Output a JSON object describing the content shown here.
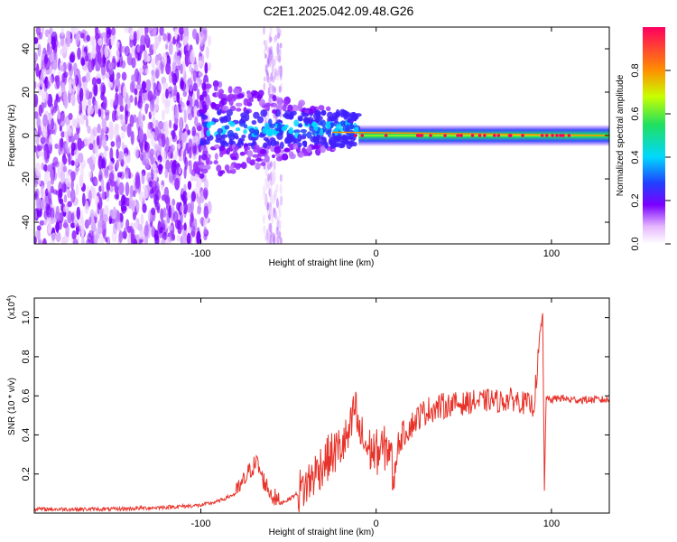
{
  "title": "C2E1.2025.042.09.48.G26",
  "chart_data": [
    {
      "type": "heatmap",
      "xlabel": "Height of straight line (km)",
      "ylabel": "Frequency (Hz)",
      "xlim": [
        -195,
        133
      ],
      "ylim": [
        -50,
        50
      ],
      "xticks": [
        -100,
        0,
        100
      ],
      "xtick_labels": [
        "-100",
        "0",
        "100"
      ],
      "yticks": [
        -40,
        -20,
        0,
        20,
        40
      ],
      "ytick_labels": [
        "-40",
        "-20",
        "0",
        "20",
        "40"
      ],
      "colorbar": {
        "label": "Normalized spectral amplitude",
        "range": [
          0,
          1
        ],
        "ticks": [
          0.0,
          0.2,
          0.4,
          0.6,
          0.8
        ],
        "tick_labels": [
          "0.0",
          "0.2",
          "0.4",
          "0.6",
          "0.8"
        ]
      },
      "ridge": {
        "description_points_x": [
          -95,
          -60,
          -40,
          -20,
          -10,
          0,
          50,
          100,
          133
        ],
        "frequency_y": [
          3,
          4,
          5,
          2,
          0.5,
          0,
          0,
          0,
          0
        ],
        "amplitude": [
          0.3,
          0.3,
          0.45,
          0.6,
          0.85,
          0.9,
          0.85,
          0.8,
          0.35
        ]
      }
    },
    {
      "type": "line",
      "xlabel": "Height of straight line (km)",
      "ylabel": "SNR (10 * v/v)",
      "y_multiplier_label": "(x10",
      "y_multiplier_exp": "4",
      "y_multiplier_close": ")",
      "xlim": [
        -195,
        133
      ],
      "ylim": [
        0,
        1.1
      ],
      "xticks": [
        -100,
        0,
        100
      ],
      "xtick_labels": [
        "-100",
        "0",
        "100"
      ],
      "yticks": [
        0.2,
        0.4,
        0.6,
        0.8,
        1.0
      ],
      "ytick_labels": [
        "0.2",
        "0.4",
        "0.6",
        "0.8",
        "1.0"
      ],
      "series": [
        {
          "color": "#e8332a",
          "x": [
            -195,
            -150,
            -120,
            -100,
            -90,
            -80,
            -75,
            -72,
            -68,
            -65,
            -60,
            -55,
            -50,
            -45,
            -40,
            -35,
            -30,
            -25,
            -20,
            -15,
            -12,
            -10,
            -5,
            0,
            5,
            8,
            10,
            12,
            15,
            20,
            25,
            30,
            35,
            40,
            45,
            50,
            55,
            60,
            65,
            70,
            75,
            80,
            85,
            90,
            93,
            95,
            96,
            97,
            98,
            100,
            105,
            110,
            120,
            133
          ],
          "y": [
            0.02,
            0.02,
            0.03,
            0.04,
            0.06,
            0.1,
            0.17,
            0.22,
            0.26,
            0.18,
            0.1,
            0.05,
            0.07,
            0.1,
            0.14,
            0.2,
            0.26,
            0.3,
            0.34,
            0.4,
            0.55,
            0.42,
            0.33,
            0.31,
            0.33,
            0.34,
            0.14,
            0.34,
            0.4,
            0.45,
            0.5,
            0.53,
            0.54,
            0.55,
            0.56,
            0.56,
            0.57,
            0.57,
            0.58,
            0.57,
            0.58,
            0.58,
            0.56,
            0.55,
            0.85,
            1.02,
            0.12,
            0.6,
            0.58,
            0.58,
            0.59,
            0.58,
            0.58,
            0.58
          ]
        }
      ]
    }
  ]
}
